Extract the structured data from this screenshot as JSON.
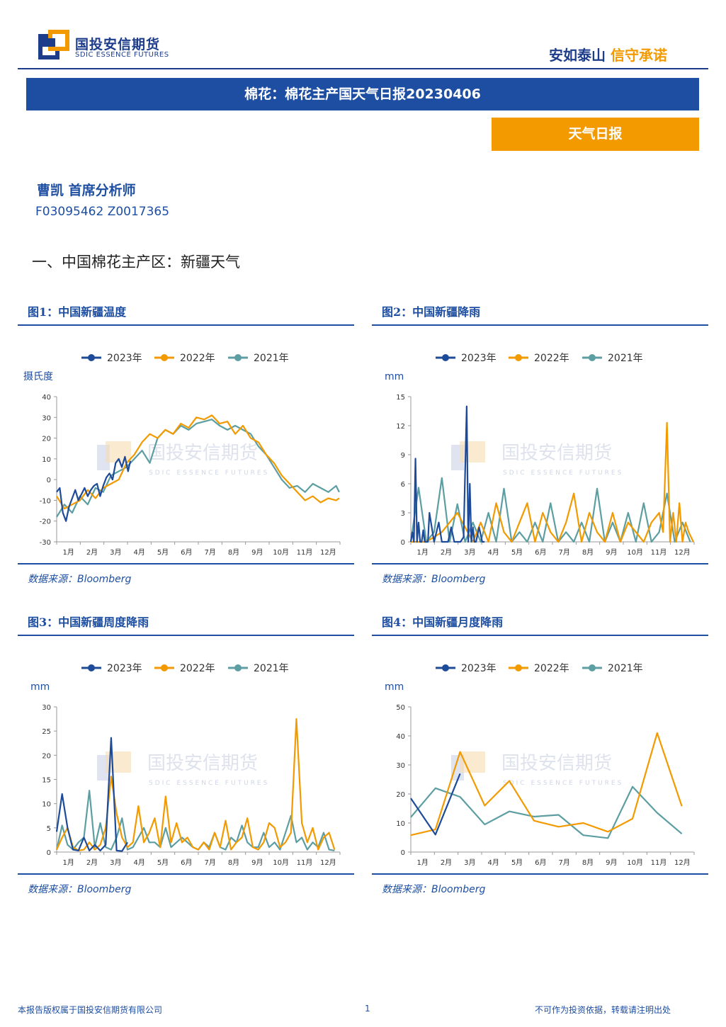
{
  "header": {
    "logo_cn": "国投安信期货",
    "logo_en": "SDIC ESSENCE FUTURES",
    "slogan_a": "安如泰山",
    "slogan_b": "信守承诺"
  },
  "report": {
    "title": "棉花：棉花主产国天气日报20230406",
    "type": "天气日报",
    "author": "曹凯 首席分析师",
    "cert": "F03095462 Z0017365",
    "section": "一、中国棉花主产区：新疆天气"
  },
  "watermark": {
    "cn": "国投安信期货",
    "en": "SDIC ESSENCE FUTURES"
  },
  "legend": [
    "2023年",
    "2022年",
    "2021年"
  ],
  "colors": {
    "2023": "#1d4b9a",
    "2022": "#f29a00",
    "2021": "#5c9ea2"
  },
  "months": [
    "1月",
    "2月",
    "3月",
    "4月",
    "5月",
    "6月",
    "7月",
    "8月",
    "9月",
    "10月",
    "11月",
    "12月"
  ],
  "footer": {
    "left": "本报告版权属于国投安信期货有限公司",
    "page": "1",
    "right": "不可作为投资依据，转载请注明出处"
  },
  "chart_data": [
    {
      "id": "c1",
      "type": "line",
      "title": "图1：中国新疆温度",
      "unit": "摄氏度",
      "source": "数据来源：Bloomberg",
      "ylim": [
        -30,
        40
      ],
      "yticks": [
        -30,
        -20,
        -10,
        0,
        10,
        20,
        30,
        40
      ],
      "series": [
        {
          "name": "2023年",
          "x": [
            0,
            4,
            8,
            12,
            16,
            20,
            24,
            28,
            32,
            36,
            40,
            44,
            48,
            52,
            56,
            60,
            64,
            68,
            72,
            76,
            80,
            84,
            88,
            92,
            95
          ],
          "values": [
            -6,
            -4,
            -16,
            -20,
            -13,
            -9,
            -5,
            -10,
            -7,
            -4,
            -8,
            -5,
            -3,
            -2,
            -8,
            -3,
            1,
            3,
            0,
            8,
            10,
            6,
            11,
            4,
            9
          ]
        },
        {
          "name": "2022年",
          "x": [
            0,
            10,
            20,
            30,
            40,
            50,
            60,
            70,
            80,
            90,
            100,
            110,
            120,
            130,
            140,
            150,
            160,
            170,
            180,
            190,
            200,
            210,
            220,
            230,
            240,
            250,
            260,
            270,
            280,
            290,
            300,
            310,
            320,
            330,
            340,
            350,
            360,
            364
          ],
          "values": [
            -8,
            -14,
            -12,
            -10,
            -5,
            -9,
            -4,
            -2,
            0,
            8,
            12,
            18,
            22,
            20,
            24,
            22,
            27,
            25,
            30,
            29,
            31,
            27,
            28,
            22,
            26,
            20,
            18,
            12,
            8,
            2,
            -2,
            -6,
            -10,
            -8,
            -11,
            -9,
            -10,
            -9
          ]
        },
        {
          "name": "2021年",
          "x": [
            0,
            10,
            20,
            30,
            40,
            50,
            60,
            70,
            80,
            90,
            100,
            110,
            120,
            130,
            140,
            150,
            160,
            170,
            180,
            190,
            200,
            210,
            220,
            230,
            240,
            250,
            260,
            270,
            280,
            290,
            300,
            310,
            320,
            330,
            340,
            350,
            360,
            364
          ],
          "values": [
            -18,
            -12,
            -16,
            -8,
            -12,
            -4,
            -6,
            2,
            4,
            6,
            10,
            14,
            8,
            20,
            24,
            22,
            26,
            24,
            27,
            28,
            29,
            26,
            24,
            26,
            24,
            22,
            16,
            12,
            6,
            0,
            -4,
            -3,
            -6,
            -2,
            -4,
            -6,
            -3,
            -6
          ]
        }
      ]
    },
    {
      "id": "c2",
      "type": "line",
      "title": "图2：中国新疆降雨",
      "unit": "mm",
      "source": "数据来源：Bloomberg",
      "ylim": [
        0,
        15
      ],
      "yticks": [
        0,
        3,
        6,
        9,
        12,
        15
      ],
      "series": [
        {
          "name": "2023年",
          "x": [
            0,
            2,
            4,
            6,
            8,
            10,
            12,
            14,
            16,
            18,
            20,
            22,
            24,
            30,
            36,
            40,
            44,
            48,
            52,
            56,
            60,
            64,
            68,
            72,
            74,
            76,
            78,
            80,
            82,
            84,
            88,
            92,
            95
          ],
          "values": [
            0,
            1,
            0,
            8.6,
            0,
            2,
            0,
            0,
            1.2,
            0,
            0,
            0,
            3,
            0,
            2,
            0,
            0,
            0,
            1.5,
            0,
            0,
            0,
            0.5,
            14,
            0,
            6,
            0,
            1.5,
            0,
            0,
            1.5,
            0,
            0
          ]
        },
        {
          "name": "2022年",
          "x": [
            0,
            20,
            40,
            60,
            80,
            90,
            100,
            110,
            120,
            130,
            140,
            150,
            160,
            170,
            180,
            190,
            200,
            210,
            220,
            230,
            240,
            250,
            260,
            270,
            280,
            290,
            300,
            310,
            320,
            325,
            330,
            334,
            338,
            342,
            346,
            350,
            354,
            358,
            364
          ],
          "values": [
            0,
            0,
            1,
            3,
            0,
            2,
            0,
            4,
            1,
            0,
            2,
            4,
            0,
            3,
            1,
            0,
            2,
            5,
            0,
            3,
            1,
            0,
            3,
            0,
            2,
            1,
            0,
            2,
            3,
            1,
            12.3,
            0,
            3,
            0,
            4,
            0,
            2,
            1,
            0
          ]
        },
        {
          "name": "2021年",
          "x": [
            0,
            10,
            20,
            30,
            40,
            50,
            60,
            70,
            80,
            90,
            100,
            110,
            120,
            130,
            140,
            150,
            160,
            170,
            180,
            190,
            200,
            210,
            220,
            230,
            240,
            250,
            260,
            270,
            280,
            290,
            300,
            310,
            320,
            330,
            340,
            350,
            360
          ],
          "values": [
            0,
            5.6,
            0,
            1,
            6.6,
            0,
            3.9,
            0,
            2,
            0,
            3,
            0,
            5.5,
            0,
            1,
            0,
            2,
            0,
            4,
            0,
            1,
            0,
            2,
            0,
            5.5,
            0,
            2,
            0,
            3,
            0,
            4,
            0,
            1,
            5,
            0,
            2,
            0
          ]
        }
      ]
    },
    {
      "id": "c3",
      "type": "line",
      "title": "图3：中国新疆周度降雨",
      "unit": "mm",
      "source": "数据来源：Bloomberg",
      "ylim": [
        0,
        30
      ],
      "yticks": [
        0,
        5,
        10,
        15,
        20,
        25,
        30
      ],
      "series": [
        {
          "name": "2023年",
          "x": [
            1,
            2,
            3,
            4,
            5,
            6,
            7,
            8,
            9,
            10,
            11,
            12,
            13,
            14
          ],
          "values": [
            4.2,
            12,
            5,
            0.5,
            0.3,
            3,
            0.3,
            1.5,
            0.3,
            1.5,
            23.6,
            0.3,
            0.2,
            2
          ]
        },
        {
          "name": "2022年",
          "x": [
            1,
            2,
            3,
            4,
            5,
            6,
            7,
            8,
            9,
            10,
            11,
            12,
            13,
            14,
            15,
            16,
            17,
            18,
            19,
            20,
            21,
            22,
            23,
            24,
            25,
            26,
            27,
            28,
            29,
            30,
            31,
            32,
            33,
            34,
            35,
            36,
            37,
            38,
            39,
            40,
            41,
            42,
            43,
            44,
            45,
            46,
            47,
            48,
            49,
            50,
            51,
            52
          ],
          "values": [
            0.5,
            3,
            5,
            1,
            0.3,
            0.5,
            2,
            0.5,
            1.5,
            5,
            15.6,
            8,
            3,
            1,
            2,
            9.5,
            2,
            4,
            7,
            1,
            11.5,
            2,
            6,
            2,
            3,
            1,
            0.5,
            2,
            0.5,
            4,
            1,
            6.5,
            0.5,
            2,
            3,
            7,
            1,
            0.5,
            2,
            6,
            5,
            1,
            2,
            4,
            27.5,
            6,
            2,
            5,
            0.5,
            3,
            4,
            0.5
          ]
        },
        {
          "name": "2021年",
          "x": [
            1,
            2,
            3,
            4,
            5,
            6,
            7,
            8,
            9,
            10,
            11,
            12,
            13,
            14,
            15,
            16,
            17,
            18,
            19,
            20,
            21,
            22,
            23,
            24,
            25,
            26,
            27,
            28,
            29,
            30,
            31,
            32,
            33,
            34,
            35,
            36,
            37,
            38,
            39,
            40,
            41,
            42,
            43,
            44,
            45,
            46,
            47,
            48,
            49,
            50,
            51,
            52
          ],
          "values": [
            0.5,
            5.5,
            1.5,
            0.5,
            2,
            3,
            12.7,
            1,
            6,
            1,
            0.5,
            3,
            7,
            0.5,
            1,
            3,
            5,
            2,
            2,
            1,
            5,
            1,
            2,
            3,
            2,
            1,
            0.5,
            2,
            1,
            4,
            1,
            0.5,
            3,
            2,
            5.5,
            2,
            1,
            1,
            4,
            1,
            2,
            0.5,
            4,
            7.5,
            2,
            3,
            0.5,
            2,
            1,
            4,
            0.5,
            0.3
          ]
        }
      ]
    },
    {
      "id": "c4",
      "type": "line",
      "title": "图4：中国新疆月度降雨",
      "unit": "mm",
      "source": "数据来源：Bloomberg",
      "ylim": [
        0,
        50
      ],
      "yticks": [
        0,
        10,
        20,
        30,
        40,
        50
      ],
      "series": [
        {
          "name": "2023年",
          "x": [
            1,
            2,
            3
          ],
          "values": [
            18.5,
            6,
            27
          ]
        },
        {
          "name": "2022年",
          "x": [
            1,
            2,
            3,
            4,
            5,
            6,
            7,
            8,
            9,
            10,
            11,
            12
          ],
          "values": [
            5.8,
            7.8,
            34.5,
            16,
            24.5,
            10.8,
            8.7,
            10,
            7,
            11.5,
            41,
            15.8
          ]
        },
        {
          "name": "2021年",
          "x": [
            1,
            2,
            3,
            4,
            5,
            6,
            7,
            8,
            9,
            10,
            11,
            12
          ],
          "values": [
            12,
            22,
            19,
            9.5,
            14,
            12.2,
            12.8,
            5.8,
            4.8,
            22.5,
            13.5,
            6.3
          ]
        }
      ]
    }
  ]
}
